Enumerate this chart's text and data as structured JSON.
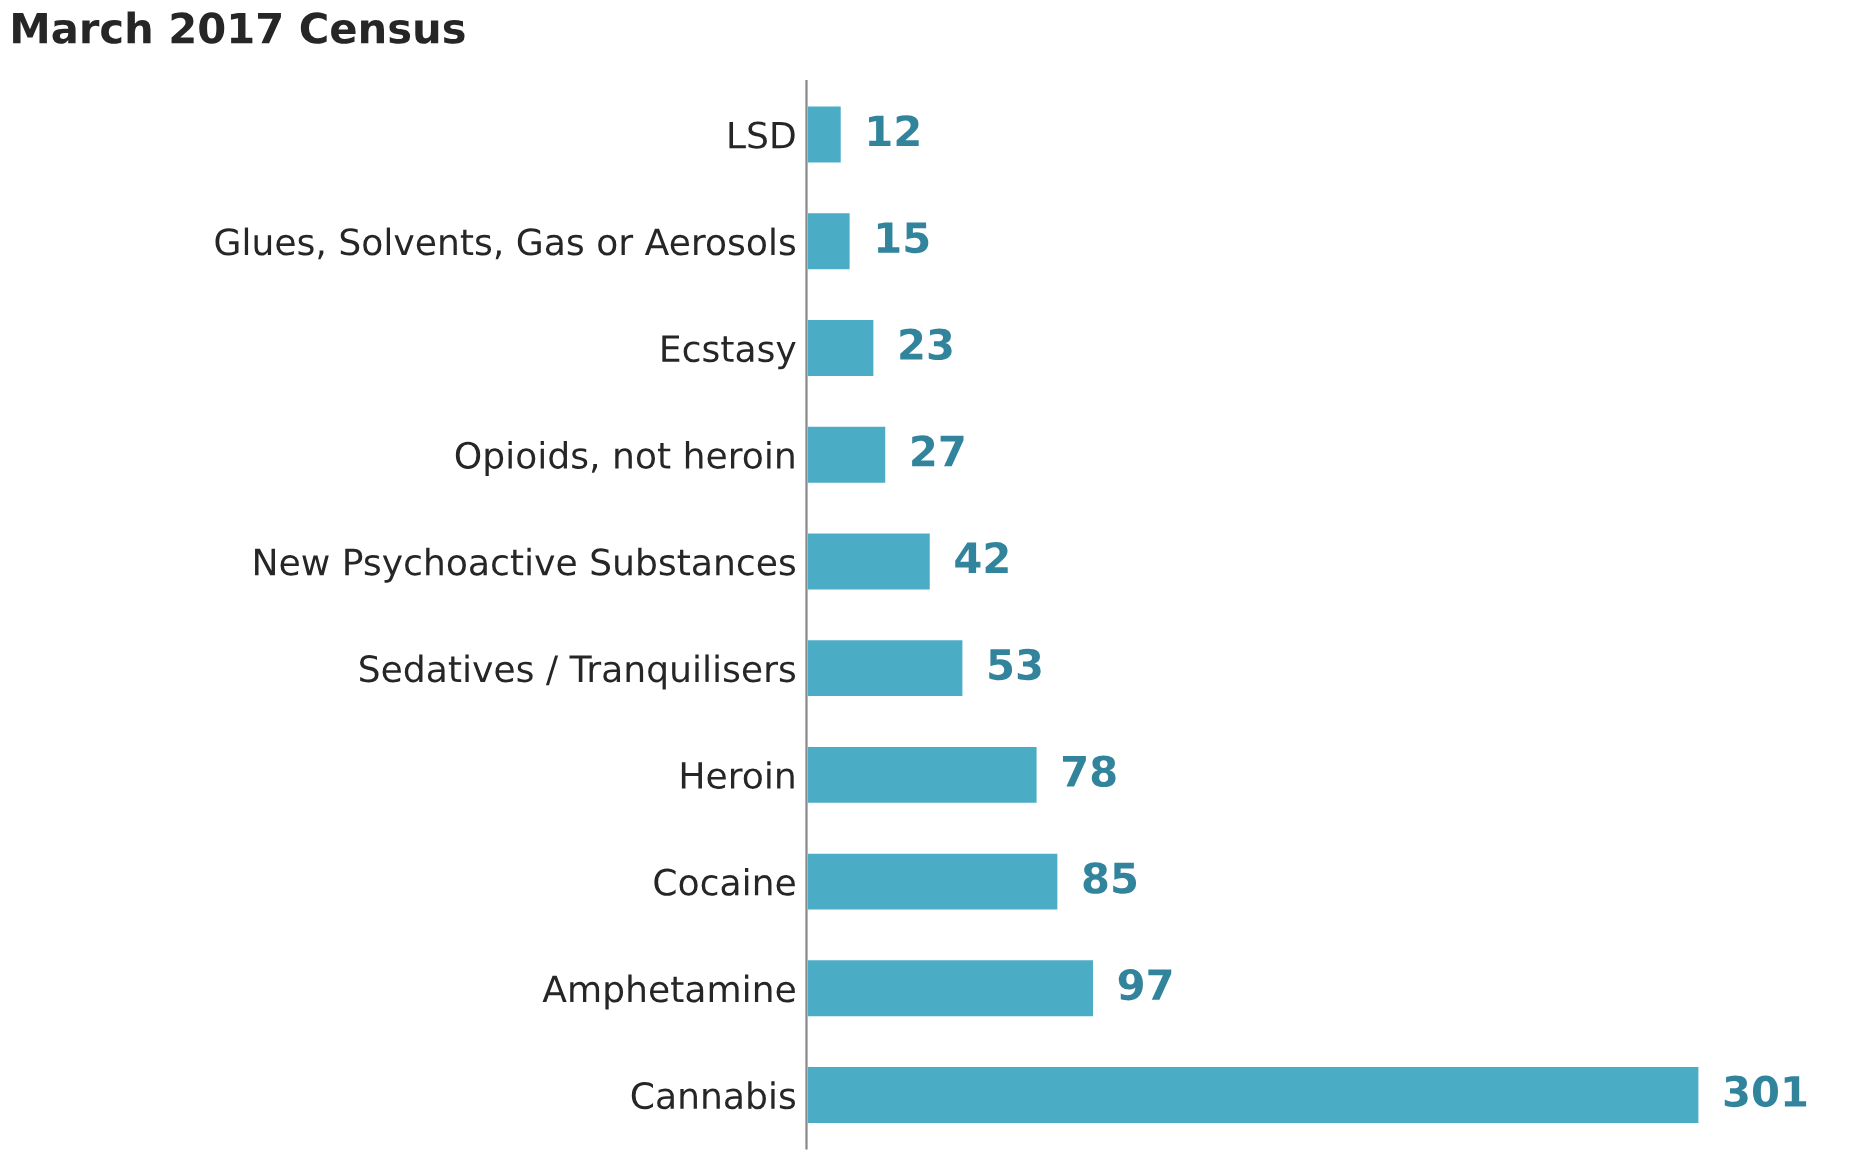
{
  "chart_data": {
    "type": "bar",
    "orientation": "horizontal",
    "title": "March 2017 Census",
    "categories": [
      "LSD",
      "Glues, Solvents, Gas or Aerosols",
      "Ecstasy",
      "Opioids, not heroin",
      "New Psychoactive Substances",
      "Sedatives / Tranquilisers",
      "Heroin",
      "Cocaine",
      "Amphetamine",
      "Cannabis"
    ],
    "values": [
      12,
      15,
      23,
      27,
      42,
      53,
      78,
      85,
      97,
      301
    ],
    "color": "#4bacc6",
    "data_labels": true,
    "grid": false,
    "legend": false
  }
}
